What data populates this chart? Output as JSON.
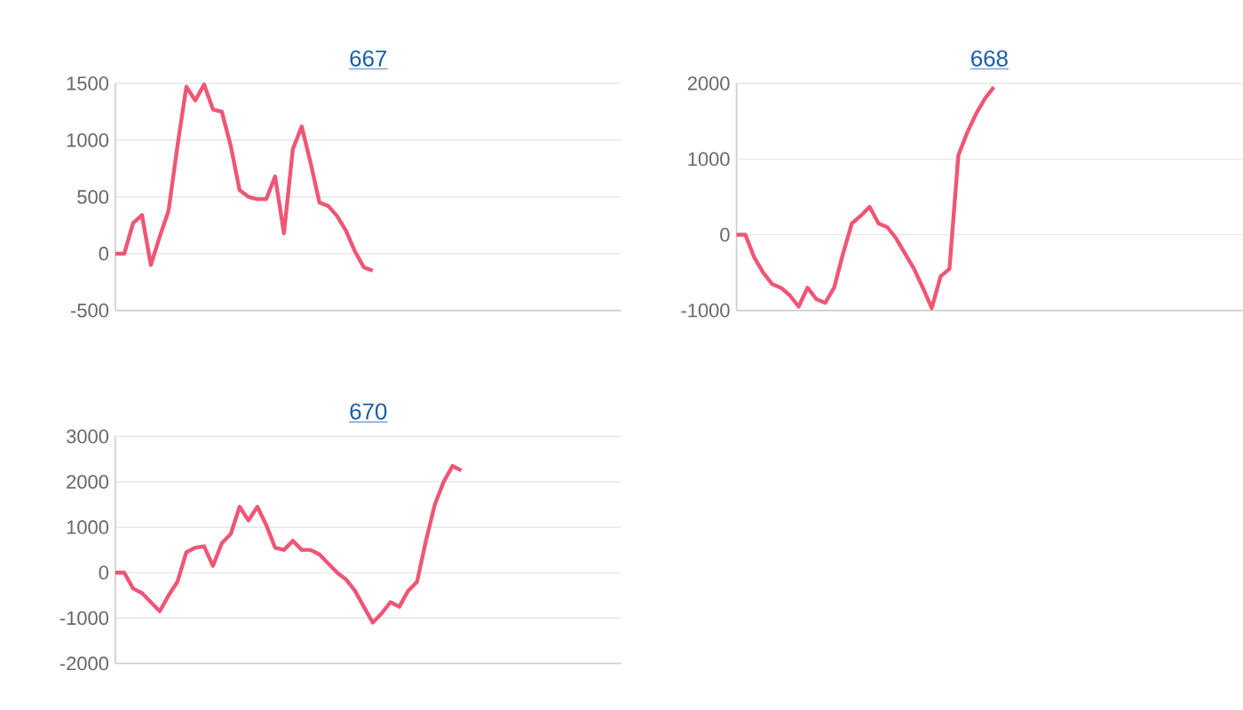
{
  "chart_data": [
    {
      "type": "line",
      "title": "667",
      "categories": [
        null,
        null,
        null,
        null,
        null,
        null,
        null,
        null,
        null,
        null,
        null,
        null,
        null,
        null,
        null,
        null,
        null,
        null,
        null,
        null,
        null,
        null,
        null,
        null,
        null,
        null,
        null,
        null,
        null,
        null,
        null,
        null,
        null,
        null,
        null,
        null,
        null,
        null,
        null,
        null,
        null,
        null,
        null,
        null,
        null,
        null,
        null,
        null,
        null,
        null,
        null,
        null,
        null,
        null,
        null,
        null,
        null,
        null
      ],
      "color": "#ef5675",
      "ylim": [
        -500,
        1500
      ],
      "yticks": [
        -500,
        0,
        500,
        1000,
        1500
      ],
      "grid": "y",
      "values": [
        0,
        0,
        270,
        340,
        -100,
        150,
        380,
        950,
        1470,
        1350,
        1490,
        1270,
        1250,
        950,
        560,
        500,
        480,
        480,
        680,
        180,
        920,
        1120,
        800,
        450,
        420,
        330,
        200,
        20,
        -120,
        -150,
        null,
        null,
        null,
        null,
        null,
        null,
        null,
        null,
        null,
        null,
        null,
        null,
        null,
        null,
        null,
        null,
        null,
        null,
        null,
        null,
        null,
        null,
        null,
        null,
        null,
        null,
        null,
        null
      ]
    },
    {
      "type": "line",
      "title": "668",
      "categories": [
        null,
        null,
        null,
        null,
        null,
        null,
        null,
        null,
        null,
        null,
        null,
        null,
        null,
        null,
        null,
        null,
        null,
        null,
        null,
        null,
        null,
        null,
        null,
        null,
        null,
        null,
        null,
        null,
        null,
        null,
        null,
        null,
        null,
        null,
        null,
        null,
        null,
        null,
        null,
        null,
        null,
        null,
        null,
        null,
        null,
        null,
        null,
        null,
        null,
        null,
        null,
        null,
        null,
        null,
        null,
        null,
        null,
        null
      ],
      "color": "#ef5675",
      "ylim": [
        -1000,
        2000
      ],
      "yticks": [
        -1000,
        0,
        1000,
        2000
      ],
      "grid": "y",
      "values": [
        0,
        0,
        -300,
        -500,
        -650,
        -700,
        -800,
        -950,
        -700,
        -850,
        -900,
        -700,
        -250,
        150,
        250,
        370,
        150,
        100,
        -50,
        -250,
        -450,
        -700,
        -970,
        -550,
        -450,
        1050,
        1350,
        1600,
        1800,
        1950,
        null,
        null,
        null,
        null,
        null,
        null,
        null,
        null,
        null,
        null,
        null,
        null,
        null,
        null,
        null,
        null,
        null,
        null,
        null,
        null,
        null,
        null,
        null,
        null,
        null,
        null,
        null,
        null
      ]
    },
    {
      "type": "line",
      "title": "670",
      "categories": [
        null,
        null,
        null,
        null,
        null,
        null,
        null,
        null,
        null,
        null,
        null,
        null,
        null,
        null,
        null,
        null,
        null,
        null,
        null,
        null,
        null,
        null,
        null,
        null,
        null,
        null,
        null,
        null,
        null,
        null,
        null,
        null,
        null,
        null,
        null,
        null,
        null,
        null,
        null,
        null,
        null,
        null,
        null,
        null,
        null,
        null,
        null,
        null,
        null,
        null,
        null,
        null,
        null,
        null,
        null,
        null,
        null,
        null
      ],
      "color": "#ef5675",
      "ylim": [
        -2000,
        3000
      ],
      "yticks": [
        -2000,
        -1000,
        0,
        1000,
        2000,
        3000
      ],
      "grid": "y",
      "values": [
        0,
        0,
        -350,
        -450,
        -650,
        -850,
        -500,
        -200,
        450,
        550,
        580,
        150,
        650,
        850,
        1450,
        1150,
        1450,
        1050,
        550,
        500,
        700,
        500,
        500,
        400,
        200,
        0,
        -150,
        -400,
        -750,
        -1100,
        -900,
        -650,
        -750,
        -400,
        -200,
        700,
        1500,
        2000,
        2350,
        2250,
        null,
        null,
        null,
        null,
        null,
        null,
        null,
        null,
        null,
        null,
        null,
        null,
        null,
        null,
        null,
        null,
        null,
        null
      ]
    }
  ]
}
